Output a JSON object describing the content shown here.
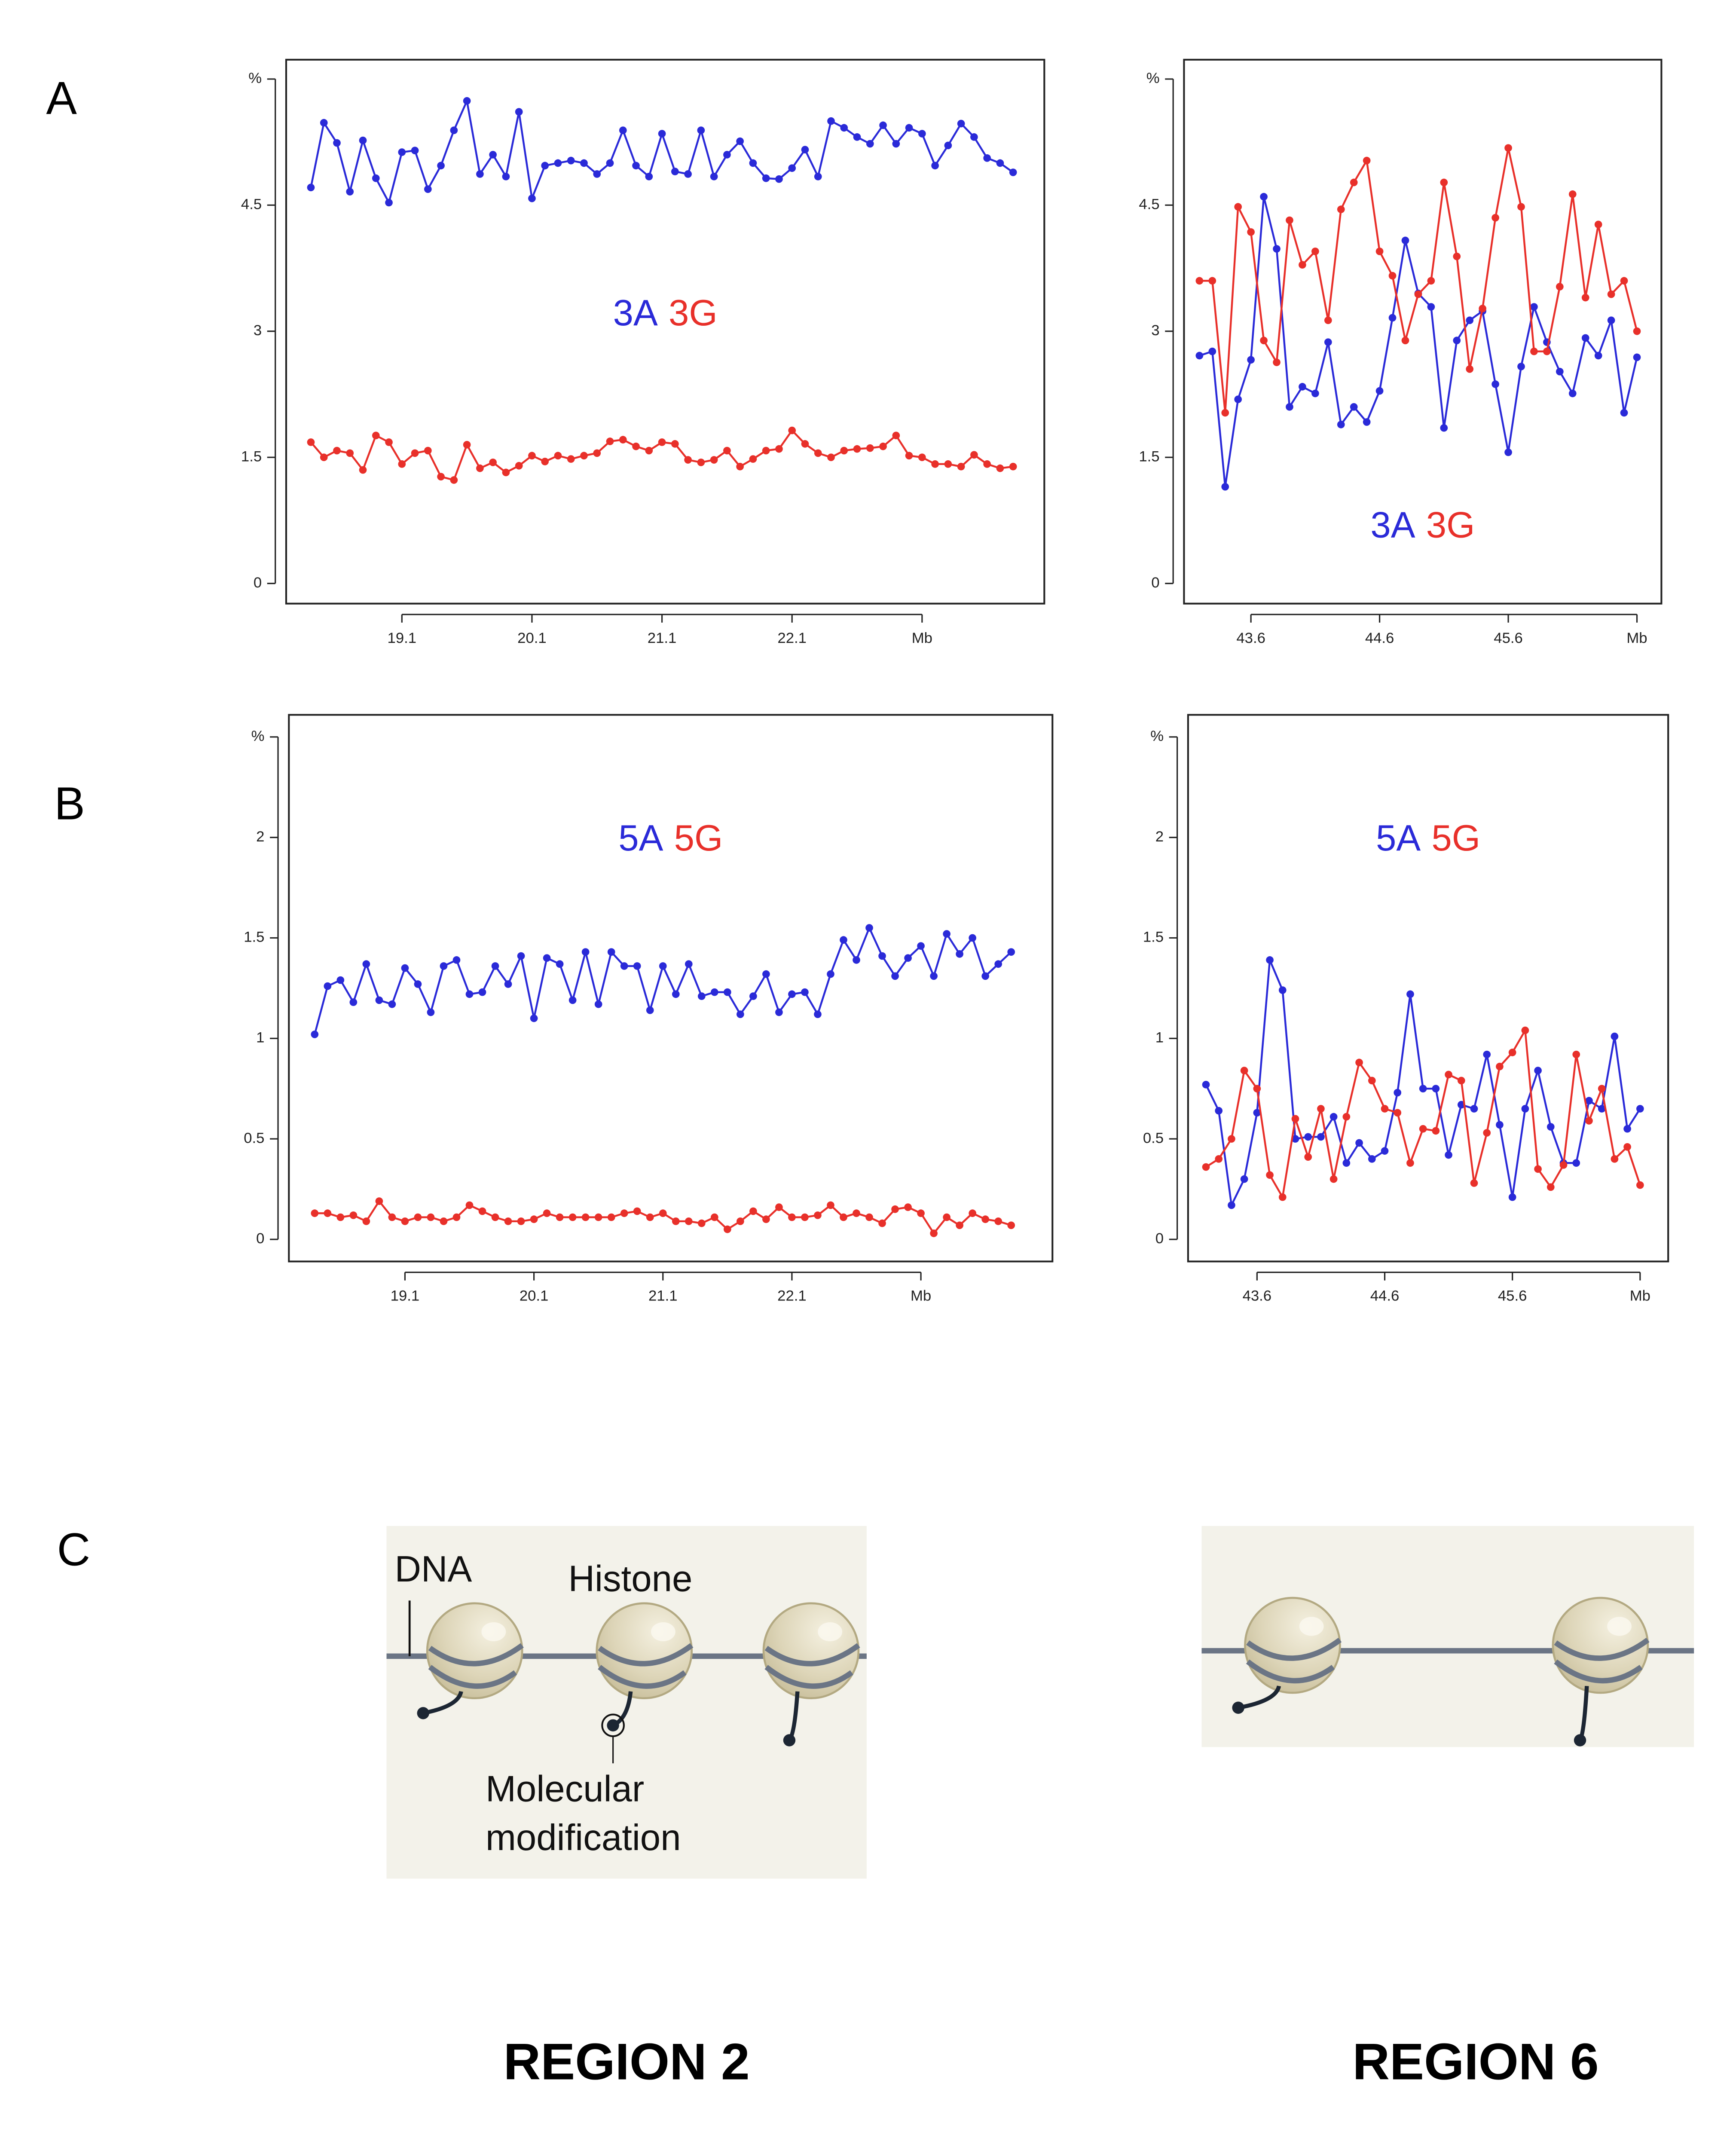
{
  "chart_data": [
    {
      "type": "line",
      "legend": "center",
      "x": [
        18.4,
        18.5,
        18.6,
        18.7,
        18.8,
        18.9,
        19.0,
        19.1,
        19.2,
        19.3,
        19.4,
        19.5,
        19.6,
        19.7,
        19.8,
        19.9,
        20.0,
        20.1,
        20.2,
        20.3,
        20.4,
        20.5,
        20.6,
        20.7,
        20.8,
        20.9,
        21.0,
        21.1,
        21.2,
        21.3,
        21.4,
        21.5,
        21.6,
        21.7,
        21.8,
        21.9,
        22.0,
        22.1,
        22.2,
        22.3,
        22.4,
        22.5,
        22.6,
        22.7,
        22.8,
        22.9,
        23.0,
        23.1,
        23.2,
        23.3,
        23.4,
        23.5,
        23.6,
        23.7,
        23.8
      ],
      "xlim": [
        18.21,
        24.04
      ],
      "xticks": [
        19.1,
        20.1,
        21.1,
        22.1,
        {
          "value": 23.1,
          "label": "Mb"
        }
      ],
      "ylim": [
        -0.24,
        6.23
      ],
      "yticks": [
        0,
        1.5,
        3,
        4.5,
        {
          "value": 6,
          "label": "%"
        }
      ],
      "series": [
        {
          "name": "3A",
          "color": "#2a2ad8",
          "values": [
            4.71,
            5.48,
            5.24,
            4.66,
            5.27,
            4.82,
            4.53,
            5.13,
            5.15,
            4.69,
            4.97,
            5.39,
            5.74,
            4.87,
            5.1,
            4.84,
            5.61,
            4.58,
            4.97,
            5.0,
            5.03,
            5.0,
            4.87,
            5.0,
            5.39,
            4.97,
            4.84,
            5.35,
            4.9,
            4.87,
            5.39,
            4.84,
            5.1,
            5.26,
            5.0,
            4.82,
            4.81,
            4.94,
            5.16,
            4.84,
            5.5,
            5.42,
            5.31,
            5.23,
            5.45,
            5.23,
            5.42,
            5.35,
            4.97,
            5.21,
            5.47,
            5.31,
            5.06,
            5.0,
            4.89
          ]
        },
        {
          "name": "3G",
          "color": "#e8302a",
          "values": [
            1.68,
            1.5,
            1.58,
            1.55,
            1.35,
            1.76,
            1.68,
            1.42,
            1.55,
            1.58,
            1.27,
            1.23,
            1.65,
            1.37,
            1.44,
            1.32,
            1.4,
            1.52,
            1.45,
            1.52,
            1.48,
            1.52,
            1.55,
            1.69,
            1.71,
            1.63,
            1.58,
            1.68,
            1.66,
            1.47,
            1.44,
            1.47,
            1.58,
            1.39,
            1.48,
            1.58,
            1.6,
            1.82,
            1.66,
            1.55,
            1.5,
            1.58,
            1.6,
            1.61,
            1.63,
            1.76,
            1.52,
            1.5,
            1.42,
            1.42,
            1.39,
            1.53,
            1.42,
            1.37,
            1.39
          ]
        }
      ]
    },
    {
      "type": "line",
      "legend": "bottom",
      "x": [
        43.2,
        43.3,
        43.4,
        43.5,
        43.6,
        43.7,
        43.8,
        43.9,
        44.0,
        44.1,
        44.2,
        44.3,
        44.4,
        44.5,
        44.6,
        44.7,
        44.8,
        44.9,
        45.0,
        45.1,
        45.2,
        45.3,
        45.4,
        45.5,
        45.6,
        45.7,
        45.8,
        45.9,
        46.0,
        46.1,
        46.2,
        46.3,
        46.4,
        46.5,
        46.6
      ],
      "xlim": [
        43.08,
        46.79
      ],
      "xticks": [
        43.6,
        44.6,
        45.6,
        {
          "value": 46.6,
          "label": "Mb"
        }
      ],
      "ylim": [
        -0.24,
        6.23
      ],
      "yticks": [
        0,
        1.5,
        3,
        4.5,
        {
          "value": 6,
          "label": "%"
        }
      ],
      "series": [
        {
          "name": "3A",
          "color": "#2a2ad8",
          "values": [
            2.71,
            2.76,
            1.15,
            2.19,
            2.66,
            4.6,
            3.98,
            2.1,
            2.34,
            2.26,
            2.87,
            1.89,
            2.1,
            1.92,
            2.29,
            3.16,
            4.08,
            3.45,
            3.29,
            1.85,
            2.89,
            3.13,
            3.24,
            2.37,
            1.56,
            2.58,
            3.29,
            2.87,
            2.52,
            2.26,
            2.92,
            2.71,
            3.13,
            2.03,
            2.69
          ]
        },
        {
          "name": "3G",
          "color": "#e8302a",
          "values": [
            3.6,
            3.6,
            2.03,
            4.48,
            4.18,
            2.89,
            2.63,
            4.32,
            3.79,
            3.95,
            3.13,
            4.45,
            4.77,
            5.03,
            3.95,
            3.66,
            2.89,
            3.44,
            3.6,
            4.77,
            3.89,
            2.55,
            3.27,
            4.35,
            5.18,
            4.48,
            2.76,
            2.76,
            3.53,
            4.63,
            3.4,
            4.27,
            3.44,
            3.6,
            3.0
          ]
        }
      ]
    },
    {
      "type": "line",
      "legend": "top",
      "x": [
        18.4,
        18.5,
        18.6,
        18.7,
        18.8,
        18.9,
        19.0,
        19.1,
        19.2,
        19.3,
        19.4,
        19.5,
        19.6,
        19.7,
        19.8,
        19.9,
        20.0,
        20.1,
        20.2,
        20.3,
        20.4,
        20.5,
        20.6,
        20.7,
        20.8,
        20.9,
        21.0,
        21.1,
        21.2,
        21.3,
        21.4,
        21.5,
        21.6,
        21.7,
        21.8,
        21.9,
        22.0,
        22.1,
        22.2,
        22.3,
        22.4,
        22.5,
        22.6,
        22.7,
        22.8,
        22.9,
        23.0,
        23.1,
        23.2,
        23.3,
        23.4,
        23.5,
        23.6,
        23.7,
        23.8
      ],
      "xlim": [
        18.2,
        24.12
      ],
      "xticks": [
        19.1,
        20.1,
        21.1,
        22.1,
        {
          "value": 23.1,
          "label": "Mb"
        }
      ],
      "ylim": [
        -0.11,
        2.61
      ],
      "yticks": [
        0,
        0.5,
        1,
        1.5,
        2,
        {
          "value": 2.5,
          "label": "%"
        }
      ],
      "series": [
        {
          "name": "5A",
          "color": "#2a2ad8",
          "values": [
            1.02,
            1.26,
            1.29,
            1.18,
            1.37,
            1.19,
            1.17,
            1.35,
            1.27,
            1.13,
            1.36,
            1.39,
            1.22,
            1.23,
            1.36,
            1.27,
            1.41,
            1.1,
            1.4,
            1.37,
            1.19,
            1.43,
            1.17,
            1.43,
            1.36,
            1.36,
            1.14,
            1.36,
            1.22,
            1.37,
            1.21,
            1.23,
            1.23,
            1.12,
            1.21,
            1.32,
            1.13,
            1.22,
            1.23,
            1.12,
            1.32,
            1.49,
            1.39,
            1.55,
            1.41,
            1.31,
            1.4,
            1.46,
            1.31,
            1.52,
            1.42,
            1.5,
            1.31,
            1.37,
            1.43
          ]
        },
        {
          "name": "5G",
          "color": "#e8302a",
          "values": [
            0.13,
            0.13,
            0.11,
            0.12,
            0.09,
            0.19,
            0.11,
            0.09,
            0.11,
            0.11,
            0.09,
            0.11,
            0.17,
            0.14,
            0.11,
            0.09,
            0.09,
            0.1,
            0.13,
            0.11,
            0.11,
            0.11,
            0.11,
            0.11,
            0.13,
            0.14,
            0.11,
            0.13,
            0.09,
            0.09,
            0.08,
            0.11,
            0.05,
            0.09,
            0.14,
            0.1,
            0.16,
            0.11,
            0.11,
            0.12,
            0.17,
            0.11,
            0.13,
            0.11,
            0.08,
            0.15,
            0.16,
            0.13,
            0.03,
            0.11,
            0.07,
            0.13,
            0.1,
            0.09,
            0.07
          ]
        }
      ]
    },
    {
      "type": "line",
      "legend": "top",
      "x": [
        43.2,
        43.3,
        43.4,
        43.5,
        43.6,
        43.7,
        43.8,
        43.9,
        44.0,
        44.1,
        44.2,
        44.3,
        44.4,
        44.5,
        44.6,
        44.7,
        44.8,
        44.9,
        45.0,
        45.1,
        45.2,
        45.3,
        45.4,
        45.5,
        45.6,
        45.7,
        45.8,
        45.9,
        46.0,
        46.1,
        46.2,
        46.3,
        46.4,
        46.5,
        46.6
      ],
      "xlim": [
        43.06,
        46.82
      ],
      "xticks": [
        43.6,
        44.6,
        45.6,
        {
          "value": 46.6,
          "label": "Mb"
        }
      ],
      "ylim": [
        -0.11,
        2.61
      ],
      "yticks": [
        0,
        0.5,
        1,
        1.5,
        2,
        {
          "value": 2.5,
          "label": "%"
        }
      ],
      "series": [
        {
          "name": "5A",
          "color": "#2a2ad8",
          "values": [
            0.77,
            0.64,
            0.17,
            0.3,
            0.63,
            1.39,
            1.24,
            0.5,
            0.51,
            0.51,
            0.61,
            0.38,
            0.48,
            0.4,
            0.44,
            0.73,
            1.22,
            0.75,
            0.75,
            0.42,
            0.67,
            0.65,
            0.92,
            0.57,
            0.21,
            0.65,
            0.84,
            0.56,
            0.38,
            0.38,
            0.69,
            0.65,
            1.01,
            0.55,
            0.65
          ]
        },
        {
          "name": "5G",
          "color": "#e8302a",
          "values": [
            0.36,
            0.4,
            0.5,
            0.84,
            0.75,
            0.32,
            0.21,
            0.6,
            0.41,
            0.65,
            0.3,
            0.61,
            0.88,
            0.79,
            0.65,
            0.63,
            0.38,
            0.55,
            0.54,
            0.82,
            0.79,
            0.28,
            0.53,
            0.86,
            0.93,
            1.04,
            0.35,
            0.26,
            0.37,
            0.92,
            0.59,
            0.75,
            0.4,
            0.46,
            0.27
          ]
        }
      ]
    }
  ],
  "panels": [
    "A",
    "B",
    "C"
  ],
  "diagram": {
    "dna_label": "DNA",
    "histone_label": "Histone",
    "modification_label": [
      "Molecular",
      "modification"
    ],
    "regions": [
      "REGION 2",
      "REGION 6"
    ]
  }
}
